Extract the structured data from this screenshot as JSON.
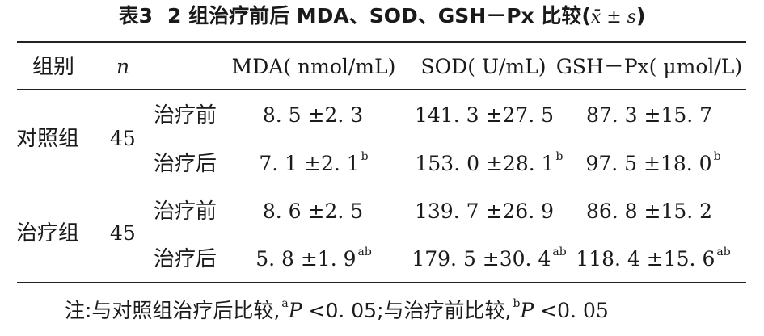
{
  "caption": {
    "label": "表3",
    "title": "2 组治疗前后 MDA、SOD、GSH－Px 比较(",
    "stat": "x̄ ± s",
    "close": ")"
  },
  "headers": {
    "group": "组别",
    "n": "n",
    "mda": "MDA( nmol/mL)",
    "sod": "SOD( U/mL)",
    "gsh": "GSH－Px( μmol/L)"
  },
  "rows": [
    {
      "group": "对照组",
      "n": "45",
      "time": "治疗前",
      "mda": "8. 5 ±2. 3",
      "mda_sup": "",
      "sod": "141. 3 ±27. 5",
      "sod_sup": "",
      "gsh": "87. 3 ±15. 7",
      "gsh_sup": ""
    },
    {
      "group": "",
      "n": "",
      "time": "治疗后",
      "mda": "7. 1 ±2. 1",
      "mda_sup": "b",
      "sod": "153. 0 ±28. 1",
      "sod_sup": "b",
      "gsh": "97. 5 ±18. 0",
      "gsh_sup": "b"
    },
    {
      "group": "治疗组",
      "n": "45",
      "time": "治疗前",
      "mda": "8. 6 ±2. 5",
      "mda_sup": "",
      "sod": "139. 7 ±26. 9",
      "sod_sup": "",
      "gsh": "86. 8 ±15. 2",
      "gsh_sup": ""
    },
    {
      "group": "",
      "n": "",
      "time": "治疗后",
      "mda": "5. 8 ±1. 9",
      "mda_sup": "ab",
      "sod": "179. 5 ±30. 4",
      "sod_sup": "ab",
      "gsh": "118. 4 ±15. 6",
      "gsh_sup": "ab"
    }
  ],
  "note": {
    "prefix": "注:与对照组治疗后比较,",
    "sup_a": "a",
    "p1": "P",
    "v1": " <0. 05;与治疗前比较,",
    "sup_b": "b",
    "p2": "P",
    "v2": " <0. 05"
  }
}
